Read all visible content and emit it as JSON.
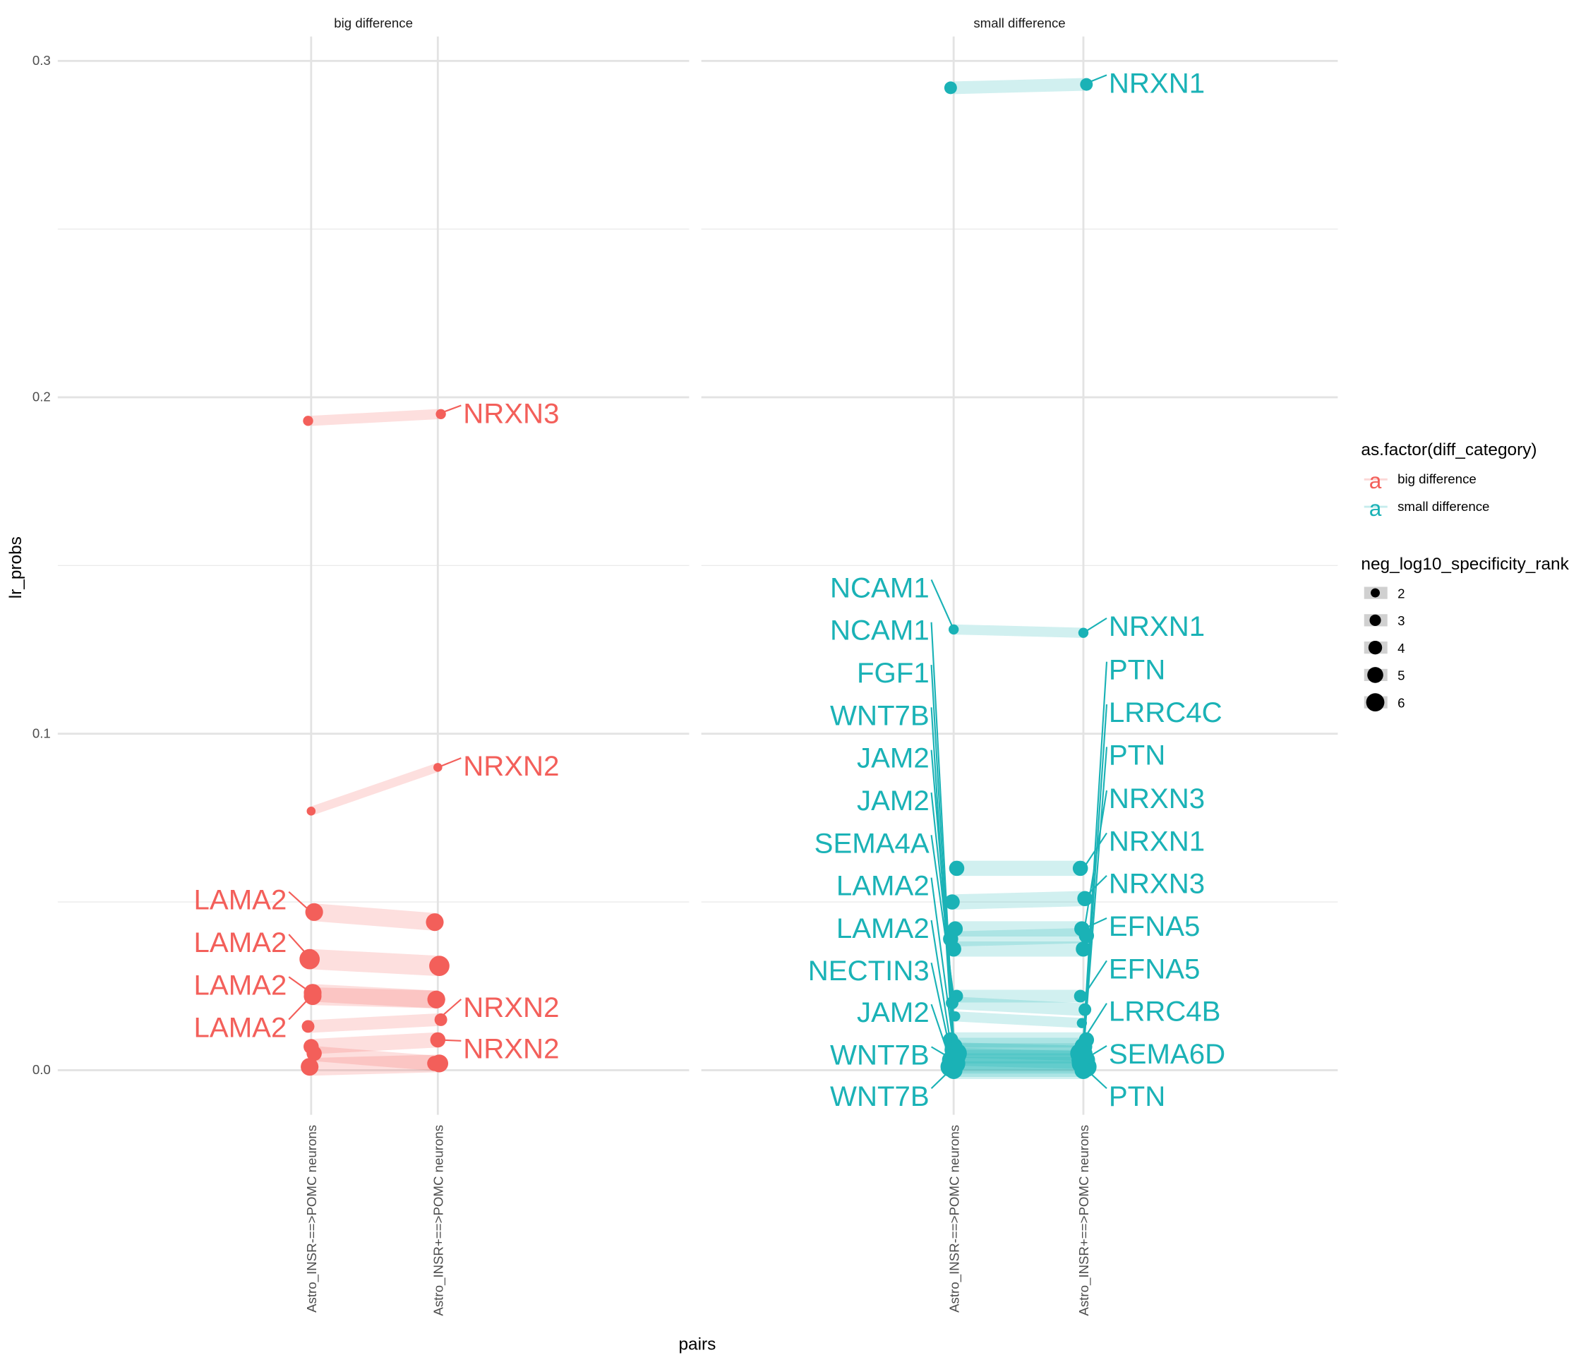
{
  "chart_data": {
    "type": "line",
    "xlabel": "pairs",
    "ylabel": "lr_probs",
    "ylim": [
      -0.012,
      0.3
    ],
    "y_ticks": [
      "0.0",
      "0.1",
      "0.2",
      "0.3"
    ],
    "y_tick_values": [
      0,
      0.1,
      0.2,
      0.3
    ],
    "x_tick_labels": [
      "Astro_INSR-==>POMC neurons",
      "Astro_INSR+==>POMC neurons"
    ],
    "grid": true,
    "colors": {
      "big difference": "#F35F5A",
      "small difference": "#1AB2B6"
    },
    "panels": [
      {
        "strip": "big difference",
        "category": "big difference",
        "segments": [
          {
            "from": 0.193,
            "to": 0.195,
            "size": 2
          },
          {
            "from": 0.077,
            "to": 0.09,
            "size": 1.5
          },
          {
            "from": 0.047,
            "to": 0.044,
            "size": 5
          },
          {
            "from": 0.033,
            "to": 0.031,
            "size": 6
          },
          {
            "from": 0.023,
            "to": 0.021,
            "size": 5
          },
          {
            "from": 0.013,
            "to": 0.015,
            "size": 3
          },
          {
            "from": 0.007,
            "to": 0.009,
            "size": 4
          },
          {
            "from": 0.005,
            "to": 0.002,
            "size": 4
          },
          {
            "from": 0.001,
            "to": 0.002,
            "size": 5
          },
          {
            "from": 0.022,
            "to": 0.021,
            "size": 5
          }
        ],
        "labels": [
          {
            "text": "NRXN3",
            "side": "right",
            "target": 0
          },
          {
            "text": "NRXN2",
            "side": "right",
            "target": 1
          },
          {
            "text": "LAMA2",
            "side": "left",
            "target": 2
          },
          {
            "text": "LAMA2",
            "side": "left",
            "target": 3
          },
          {
            "text": "LAMA2",
            "side": "left",
            "target": 4
          },
          {
            "text": "NRXN2",
            "side": "right",
            "target": 5
          },
          {
            "text": "LAMA2",
            "side": "left",
            "target": 9
          },
          {
            "text": "NRXN2",
            "side": "right",
            "target": 6
          }
        ]
      },
      {
        "strip": "small difference",
        "category": "small difference",
        "segments": [
          {
            "from": 0.292,
            "to": 0.293,
            "size": 3
          },
          {
            "from": 0.131,
            "to": 0.13,
            "size": 2
          },
          {
            "from": 0.06,
            "to": 0.06,
            "size": 4
          },
          {
            "from": 0.05,
            "to": 0.051,
            "size": 4
          },
          {
            "from": 0.042,
            "to": 0.042,
            "size": 4
          },
          {
            "from": 0.039,
            "to": 0.04,
            "size": 4
          },
          {
            "from": 0.036,
            "to": 0.036,
            "size": 4
          },
          {
            "from": 0.022,
            "to": 0.022,
            "size": 3
          },
          {
            "from": 0.02,
            "to": 0.018,
            "size": 3
          },
          {
            "from": 0.016,
            "to": 0.014,
            "size": 2
          },
          {
            "from": 0.009,
            "to": 0.009,
            "size": 4
          },
          {
            "from": 0.007,
            "to": 0.007,
            "size": 5
          },
          {
            "from": 0.005,
            "to": 0.005,
            "size": 6
          },
          {
            "from": 0.003,
            "to": 0.003,
            "size": 6
          },
          {
            "from": 0.002,
            "to": 0.002,
            "size": 6
          },
          {
            "from": 0.001,
            "to": 0.001,
            "size": 6
          },
          {
            "from": 0.0,
            "to": 0.0,
            "size": 5
          },
          {
            "from": 0.004,
            "to": 0.003,
            "size": 5
          },
          {
            "from": 0.006,
            "to": 0.005,
            "size": 4
          }
        ],
        "labels": [
          {
            "text": "NRXN1",
            "side": "right",
            "target": 0
          },
          {
            "text": "NCAM1",
            "side": "left",
            "target": 1
          },
          {
            "text": "NCAM1",
            "side": "left",
            "target": 10
          },
          {
            "text": "FGF1",
            "side": "left",
            "target": 12
          },
          {
            "text": "WNT7B",
            "side": "left",
            "target": 13
          },
          {
            "text": "JAM2",
            "side": "left",
            "target": 9
          },
          {
            "text": "JAM2",
            "side": "left",
            "target": 8
          },
          {
            "text": "SEMA4A",
            "side": "left",
            "target": 7
          },
          {
            "text": "LAMA2",
            "side": "left",
            "target": 11
          },
          {
            "text": "LAMA2",
            "side": "left",
            "target": 14
          },
          {
            "text": "NECTIN3",
            "side": "left",
            "target": 15
          },
          {
            "text": "JAM2",
            "side": "left",
            "target": 16
          },
          {
            "text": "WNT7B",
            "side": "left",
            "target": 13
          },
          {
            "text": "WNT7B",
            "side": "left",
            "target": 15
          },
          {
            "text": "NRXN1",
            "side": "right",
            "target": 1
          },
          {
            "text": "PTN",
            "side": "right",
            "target": 10
          },
          {
            "text": "LRRC4C",
            "side": "right",
            "target": 11
          },
          {
            "text": "PTN",
            "side": "right",
            "target": 12
          },
          {
            "text": "NRXN3",
            "side": "right",
            "target": 5
          },
          {
            "text": "NRXN1",
            "side": "right",
            "target": 2
          },
          {
            "text": "NRXN3",
            "side": "right",
            "target": 3
          },
          {
            "text": "EFNA5",
            "side": "right",
            "target": 4
          },
          {
            "text": "EFNA5",
            "side": "right",
            "target": 7
          },
          {
            "text": "LRRC4B",
            "side": "right",
            "target": 10
          },
          {
            "text": "SEMA6D",
            "side": "right",
            "target": 13
          },
          {
            "text": "PTN",
            "side": "right",
            "target": 15
          }
        ]
      }
    ],
    "legend": {
      "placement": "right",
      "color_title": "as.factor(diff_category)",
      "color_items": [
        "big difference",
        "small difference"
      ],
      "color_key_glyph": "a",
      "size_title": "neg_log10_specificity_rank",
      "size_items": [
        "2",
        "3",
        "4",
        "5",
        "6"
      ],
      "size_values": [
        2,
        3,
        4,
        5,
        6
      ]
    }
  }
}
